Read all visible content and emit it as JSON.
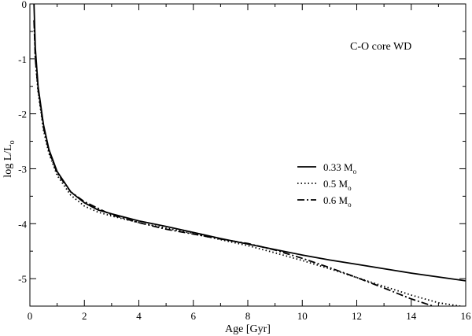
{
  "chart_data": {
    "type": "line",
    "annotation": "C-O core WD",
    "xlabel": "Age [Gyr]",
    "ylabel": "log L/L",
    "ylabel_sub": "o",
    "xlim": [
      0,
      16
    ],
    "ylim": [
      -5.5,
      0
    ],
    "xticks": [
      0,
      2,
      4,
      6,
      8,
      10,
      12,
      14,
      16
    ],
    "xtick_labels": [
      "0",
      "2",
      "4",
      "6",
      "8",
      "10",
      "12",
      "14",
      "16"
    ],
    "yticks": [
      0,
      -1,
      -2,
      -3,
      -4,
      -5
    ],
    "ytick_labels": [
      "0",
      "-1",
      "-2",
      "-3",
      "-4",
      "-5"
    ],
    "grid": false,
    "legend_position": "center-right",
    "series": [
      {
        "name": "0.33 M",
        "name_sub": "o",
        "style": "solid",
        "x": [
          0.15,
          0.2,
          0.3,
          0.5,
          0.7,
          1.0,
          1.5,
          2.0,
          2.5,
          3.0,
          4.0,
          5.0,
          6.0,
          7.0,
          8.0,
          9.0,
          10.0,
          11.0,
          12.0,
          13.0,
          14.0,
          15.0,
          16.0
        ],
        "y": [
          0,
          -0.8,
          -1.5,
          -2.2,
          -2.65,
          -3.05,
          -3.42,
          -3.62,
          -3.75,
          -3.82,
          -3.95,
          -4.05,
          -4.16,
          -4.27,
          -4.37,
          -4.47,
          -4.57,
          -4.66,
          -4.74,
          -4.82,
          -4.9,
          -4.97,
          -5.04
        ]
      },
      {
        "name": "0.5   M",
        "name_sub": "o",
        "style": "dotted",
        "x": [
          0.15,
          0.2,
          0.3,
          0.5,
          0.7,
          1.0,
          1.5,
          2.0,
          2.5,
          3.0,
          4.0,
          5.0,
          6.0,
          7.0,
          8.0,
          9.0,
          10.0,
          11.0,
          12.0,
          13.0,
          14.0,
          15.0,
          15.8
        ],
        "y": [
          -0.3,
          -1.0,
          -1.6,
          -2.3,
          -2.72,
          -3.12,
          -3.48,
          -3.68,
          -3.79,
          -3.86,
          -3.98,
          -4.08,
          -4.18,
          -4.29,
          -4.4,
          -4.53,
          -4.67,
          -4.82,
          -4.98,
          -5.14,
          -5.3,
          -5.44,
          -5.5
        ]
      },
      {
        "name": "0.6   M",
        "name_sub": "o",
        "style": "dashdot",
        "x": [
          0.15,
          0.2,
          0.3,
          0.5,
          0.7,
          1.0,
          1.5,
          2.0,
          2.5,
          3.0,
          4.0,
          5.0,
          6.0,
          7.0,
          8.0,
          9.0,
          10.0,
          11.0,
          12.0,
          13.0,
          14.0,
          14.8
        ],
        "y": [
          -0.3,
          -1.0,
          -1.55,
          -2.25,
          -2.68,
          -3.08,
          -3.42,
          -3.6,
          -3.72,
          -3.84,
          -3.98,
          -4.1,
          -4.19,
          -4.28,
          -4.36,
          -4.48,
          -4.63,
          -4.8,
          -4.98,
          -5.17,
          -5.37,
          -5.5
        ]
      }
    ]
  }
}
